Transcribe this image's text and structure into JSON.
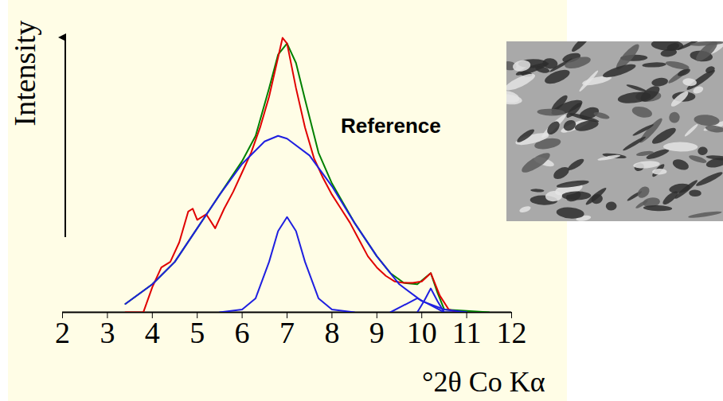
{
  "chart_data": {
    "type": "line",
    "y_label": "Intensity",
    "x_label": "°2θ Co Kα",
    "annotations": [
      "Reference"
    ],
    "xlim": [
      2,
      12
    ],
    "xticks": [
      2,
      3,
      4,
      5,
      6,
      7,
      8,
      9,
      10,
      11,
      12
    ],
    "ylim": [
      0,
      100
    ],
    "tick_labels": "x",
    "series": [
      {
        "color": "#008000",
        "x": [
          3.4,
          4.0,
          4.5,
          5.0,
          5.5,
          6.0,
          6.3,
          6.6,
          6.8,
          7.0,
          7.2,
          7.4,
          7.7,
          8.0,
          8.5,
          9.0,
          9.3,
          9.6,
          9.9,
          10.05,
          10.2,
          10.35,
          10.5,
          11.0,
          11.5
        ],
        "values": [
          3,
          10,
          18,
          30,
          42,
          54,
          63,
          80,
          92,
          96,
          89,
          76,
          57,
          46,
          32,
          20,
          14,
          10.5,
          10,
          12,
          14,
          7,
          1,
          0.5,
          0
        ]
      },
      {
        "color": "#e00000",
        "x": [
          3.4,
          3.8,
          4.0,
          4.2,
          4.4,
          4.6,
          4.8,
          4.9,
          5.0,
          5.2,
          5.4,
          5.6,
          5.8,
          6.0,
          6.2,
          6.4,
          6.6,
          6.8,
          6.9,
          7.0,
          7.2,
          7.4,
          7.6,
          7.8,
          8.0,
          8.2,
          8.4,
          8.6,
          8.8,
          9.0,
          9.2,
          9.4,
          9.6,
          9.8,
          10.0,
          10.2,
          10.4,
          10.6,
          10.8
        ],
        "values": [
          0,
          0,
          9,
          16,
          18,
          25,
          36,
          37,
          33,
          35,
          30,
          37,
          43,
          50,
          57,
          66,
          77,
          91,
          98,
          96,
          80,
          66,
          55,
          48,
          42,
          37,
          32,
          26,
          20,
          16,
          13,
          11,
          10.5,
          10.5,
          11,
          14,
          6,
          1,
          0
        ]
      },
      {
        "color": "#1f1fe0",
        "x": [
          3.4,
          4.0,
          4.5,
          5.0,
          5.5,
          6.0,
          6.5,
          6.8,
          7.0,
          7.5,
          8.0,
          8.5,
          9.0,
          9.5,
          10.0,
          10.5,
          11.0
        ],
        "values": [
          3,
          10,
          18,
          30,
          42,
          53,
          61,
          63,
          62,
          56,
          45,
          32,
          20,
          10,
          4,
          1,
          0
        ]
      },
      {
        "color": "#1f1fe0",
        "x": [
          5.5,
          6.0,
          6.3,
          6.6,
          6.8,
          7.0,
          7.2,
          7.4,
          7.7,
          8.0,
          8.5
        ],
        "values": [
          0,
          1,
          5,
          18,
          29,
          34,
          29,
          18,
          5,
          1,
          0
        ]
      },
      {
        "color": "#1f1fe0",
        "x": [
          9.3,
          9.6,
          9.9,
          10.2,
          10.5
        ],
        "values": [
          0,
          2.5,
          5,
          2.5,
          0
        ]
      },
      {
        "color": "#1f1fe0",
        "x": [
          9.9,
          10.05,
          10.2,
          10.35,
          10.5,
          11.0
        ],
        "values": [
          0,
          4,
          8.5,
          4,
          0,
          0
        ]
      }
    ]
  }
}
